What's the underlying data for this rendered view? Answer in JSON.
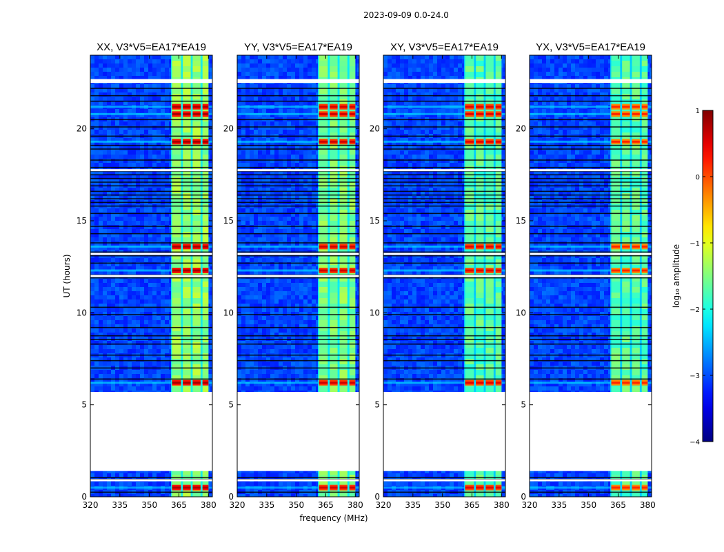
{
  "chart_data": {
    "type": "heatmap",
    "suptitle": "2023-09-09 0.0-24.0",
    "xlabel": "frequency (MHz)",
    "ylabel": "UT (hours)",
    "xlim": [
      320,
      382
    ],
    "ylim": [
      0,
      24
    ],
    "xticks": [
      320,
      335,
      350,
      365,
      380
    ],
    "yticks": [
      0,
      5,
      10,
      15,
      20
    ],
    "xtick_labels": [
      "320",
      "335",
      "350",
      "365",
      "380"
    ],
    "ytick_labels": [
      "0",
      "5",
      "10",
      "15",
      "20"
    ],
    "panels": [
      {
        "title": "XX, V3*V5=EA17*EA19",
        "pol": "XX",
        "band_level": -1.4,
        "hot_level": 0.3
      },
      {
        "title": "YY, V3*V5=EA17*EA19",
        "pol": "YY",
        "band_level": -1.5,
        "hot_level": 0.1
      },
      {
        "title": "XY, V3*V5=EA17*EA19",
        "pol": "XY",
        "band_level": -1.7,
        "hot_level": 0.0
      },
      {
        "title": "YX, V3*V5=EA17*EA19",
        "pol": "YX",
        "band_level": -1.7,
        "hot_level": -0.3
      }
    ],
    "rfi_band_mhz": [
      361,
      380
    ],
    "rfi_subbands_mhz": [
      [
        361.5,
        366
      ],
      [
        367,
        371
      ],
      [
        372,
        376
      ],
      [
        377,
        380
      ]
    ],
    "bright_lines_hours": [
      19.3,
      20.8,
      21.2,
      13.6,
      12.3,
      6.2,
      0.5
    ],
    "data_gap_hours": [
      [
        1.4,
        5.7
      ],
      [
        22.6,
        22.7
      ]
    ],
    "flag_lines_hours": [
      0.25,
      0.95,
      1.05,
      6.4,
      7.0,
      7.4,
      7.7,
      8.3,
      8.55,
      8.75,
      9.2,
      9.9,
      10.3,
      11.9,
      12.05,
      12.7,
      13.1,
      13.3,
      13.8,
      14.3,
      14.7,
      15.4,
      15.8,
      16.0,
      16.2,
      16.4,
      16.6,
      16.9,
      17.1,
      17.3,
      17.5,
      17.7,
      17.9,
      18.3,
      18.9,
      19.1,
      19.6,
      20.1,
      20.5,
      21.5,
      21.8,
      22.2
    ],
    "colorbar": {
      "label": "log₁₀ amplitude",
      "range": [
        -4,
        1
      ],
      "ticks": [
        1,
        0,
        -1,
        -2,
        -3,
        -4
      ],
      "tick_labels": [
        "1",
        "0",
        "−1",
        "−2",
        "−3",
        "−4"
      ],
      "colormap": "jet"
    }
  }
}
